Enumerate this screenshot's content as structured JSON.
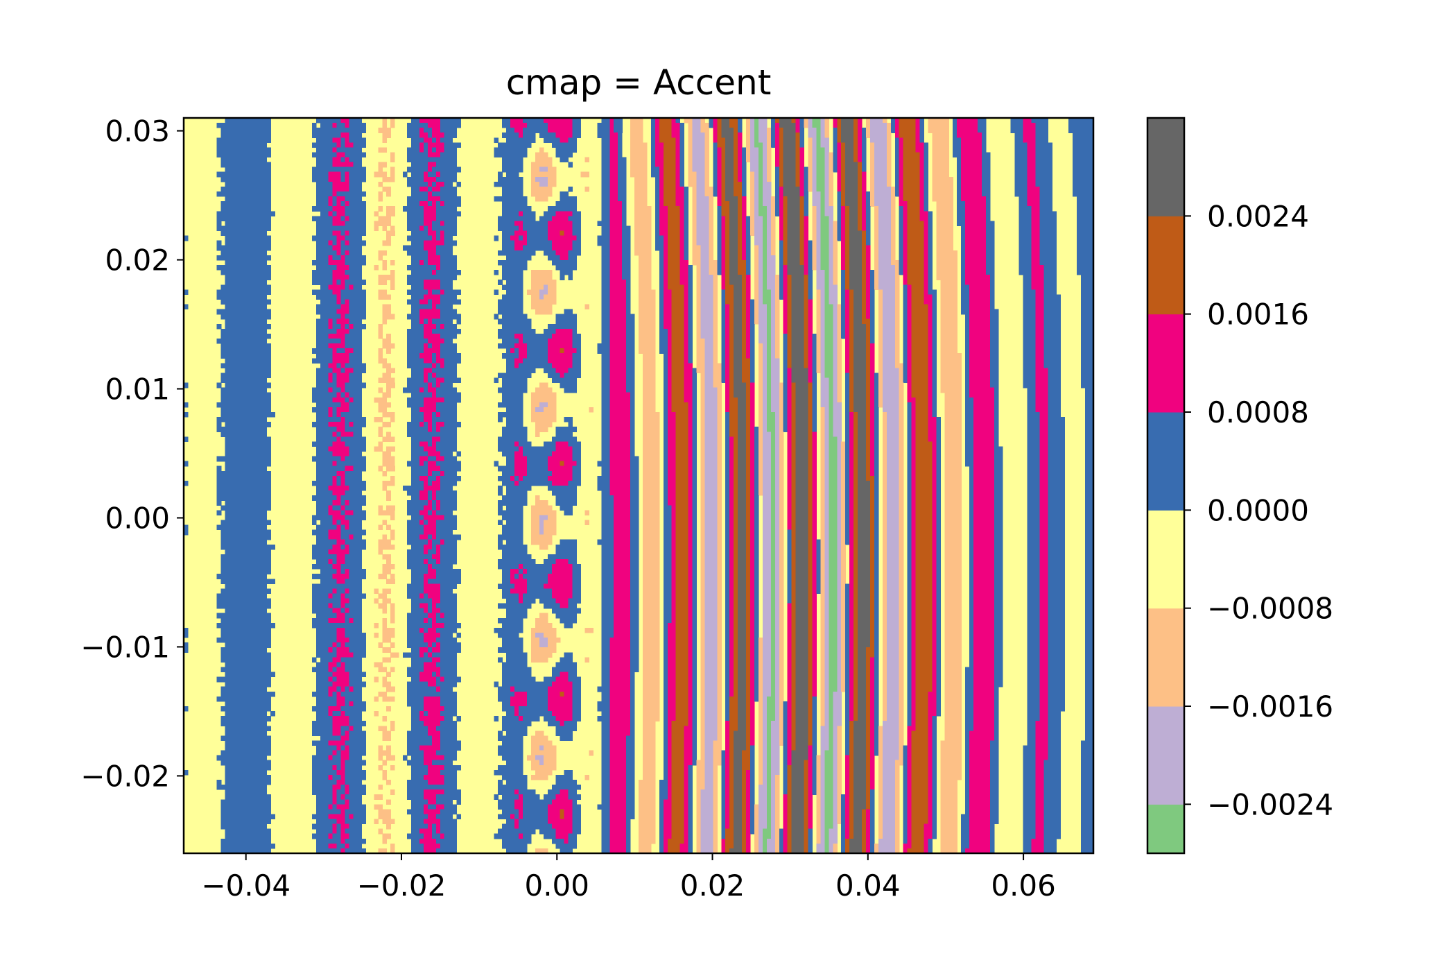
{
  "chart_data": {
    "type": "heatmap",
    "title": "cmap = Accent",
    "xlabel": "",
    "ylabel": "",
    "xlim": [
      -0.048,
      0.069
    ],
    "ylim": [
      -0.026,
      0.031
    ],
    "x_ticks": [
      -0.04,
      -0.02,
      0.0,
      0.02,
      0.04,
      0.06
    ],
    "x_tick_labels": [
      "−0.04",
      "−0.02",
      "0.00",
      "0.02",
      "0.04",
      "0.06"
    ],
    "y_ticks": [
      -0.02,
      -0.01,
      0.0,
      0.01,
      0.02,
      0.03
    ],
    "y_tick_labels": [
      "−0.02",
      "−0.01",
      "0.00",
      "0.01",
      "0.02",
      "0.03"
    ],
    "colorbar": {
      "levels": [
        -0.0028,
        -0.0024,
        -0.0016,
        -0.0008,
        0.0,
        0.0008,
        0.0016,
        0.0024
      ],
      "tick_values": [
        -0.0024,
        -0.0016,
        -0.0008,
        0.0,
        0.0008,
        0.0016,
        0.0024
      ],
      "tick_labels": [
        "−0.0024",
        "−0.0016",
        "−0.0008",
        "0.0000",
        "0.0008",
        "0.0016",
        "0.0024"
      ],
      "colors": [
        "#7fc97f",
        "#beaed4",
        "#fdc086",
        "#ffff99",
        "#386cb0",
        "#f0027f",
        "#bf5b17",
        "#666666"
      ]
    },
    "field_description": "interference fringes: nearly vertical curved bands to the right of x=0, noisy +/- speckle to the left, isolated lobes near x=0"
  }
}
